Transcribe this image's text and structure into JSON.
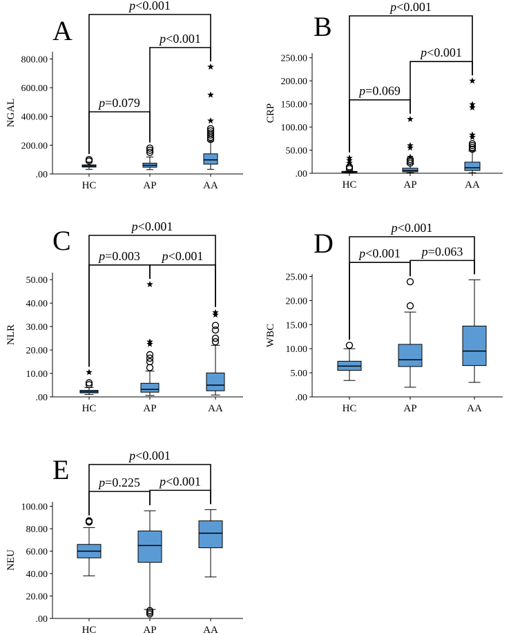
{
  "colors": {
    "box_fill": "#5b9bd5",
    "line": "#000000",
    "background": "#ffffff"
  },
  "chart_data": [
    {
      "panel_label": "A",
      "type": "boxplot",
      "ylabel": "NGAL",
      "ylim": [
        0,
        850
      ],
      "yticks": [
        0,
        200,
        400,
        600,
        800
      ],
      "ytick_labels": [
        ".00",
        "200.00",
        "400.00",
        "600.00",
        "800.00"
      ],
      "categories": [
        "HC",
        "AP",
        "AA"
      ],
      "boxes": [
        {
          "group": "HC",
          "whisker_low": 32,
          "q1": 48,
          "median": 55,
          "q3": 63,
          "whisker_high": 82
        },
        {
          "group": "AP",
          "whisker_low": 30,
          "q1": 47,
          "median": 60,
          "q3": 75,
          "whisker_high": 118
        },
        {
          "group": "AA",
          "whisker_low": 32,
          "q1": 68,
          "median": 98,
          "q3": 140,
          "whisker_high": 228
        }
      ],
      "outliers": [
        {
          "group": "HC",
          "value": 100,
          "marker": "circle"
        },
        {
          "group": "HC",
          "value": 90,
          "marker": "circle"
        },
        {
          "group": "AP",
          "value": 180,
          "marker": "circle"
        },
        {
          "group": "AP",
          "value": 165,
          "marker": "circle"
        },
        {
          "group": "AP",
          "value": 150,
          "marker": "circle"
        },
        {
          "group": "AA",
          "value": 240,
          "marker": "circle"
        },
        {
          "group": "AA",
          "value": 255,
          "marker": "circle"
        },
        {
          "group": "AA",
          "value": 270,
          "marker": "circle"
        },
        {
          "group": "AA",
          "value": 285,
          "marker": "circle"
        },
        {
          "group": "AA",
          "value": 300,
          "marker": "circle"
        },
        {
          "group": "AA",
          "value": 315,
          "marker": "circle"
        },
        {
          "group": "AA",
          "value": 370,
          "marker": "star"
        },
        {
          "group": "AA",
          "value": 550,
          "marker": "star"
        },
        {
          "group": "AA",
          "value": 745,
          "marker": "star"
        }
      ],
      "comparisons": [
        {
          "from": "HC",
          "to": "AP",
          "label": "=0.079"
        },
        {
          "from": "AP",
          "to": "AA",
          "label": "<0.001"
        },
        {
          "from": "HC",
          "to": "AA",
          "label": "<0.001"
        }
      ]
    },
    {
      "panel_label": "B",
      "type": "boxplot",
      "ylabel": "CRP",
      "ylim": [
        0,
        260
      ],
      "yticks": [
        0,
        50,
        100,
        150,
        200,
        250
      ],
      "ytick_labels": [
        ".00",
        "50.00",
        "100.00",
        "150.00",
        "200.00",
        "250.00"
      ],
      "categories": [
        "HC",
        "AP",
        "AA"
      ],
      "boxes": [
        {
          "group": "HC",
          "whisker_low": 1,
          "q1": 2,
          "median": 3,
          "q3": 4,
          "whisker_high": 6
        },
        {
          "group": "AP",
          "whisker_low": 1,
          "q1": 3,
          "median": 6,
          "q3": 11,
          "whisker_high": 20
        },
        {
          "group": "AA",
          "whisker_low": 1,
          "q1": 6,
          "median": 12,
          "q3": 24,
          "whisker_high": 48
        }
      ],
      "outliers": [
        {
          "group": "HC",
          "value": 10,
          "marker": "circle"
        },
        {
          "group": "HC",
          "value": 14,
          "marker": "circle"
        },
        {
          "group": "HC",
          "value": 22,
          "marker": "star"
        },
        {
          "group": "HC",
          "value": 28,
          "marker": "star"
        },
        {
          "group": "HC",
          "value": 33,
          "marker": "star"
        },
        {
          "group": "AP",
          "value": 22,
          "marker": "circle"
        },
        {
          "group": "AP",
          "value": 26,
          "marker": "circle"
        },
        {
          "group": "AP",
          "value": 30,
          "marker": "circle"
        },
        {
          "group": "AP",
          "value": 35,
          "marker": "star"
        },
        {
          "group": "AP",
          "value": 55,
          "marker": "star"
        },
        {
          "group": "AP",
          "value": 60,
          "marker": "star"
        },
        {
          "group": "AP",
          "value": 117,
          "marker": "star"
        },
        {
          "group": "AA",
          "value": 52,
          "marker": "circle"
        },
        {
          "group": "AA",
          "value": 56,
          "marker": "circle"
        },
        {
          "group": "AA",
          "value": 60,
          "marker": "circle"
        },
        {
          "group": "AA",
          "value": 64,
          "marker": "circle"
        },
        {
          "group": "AA",
          "value": 78,
          "marker": "star"
        },
        {
          "group": "AA",
          "value": 83,
          "marker": "star"
        },
        {
          "group": "AA",
          "value": 142,
          "marker": "star"
        },
        {
          "group": "AA",
          "value": 149,
          "marker": "star"
        },
        {
          "group": "AA",
          "value": 200,
          "marker": "star"
        }
      ],
      "comparisons": [
        {
          "from": "HC",
          "to": "AP",
          "label": "=0.069"
        },
        {
          "from": "AP",
          "to": "AA",
          "label": "<0.001"
        },
        {
          "from": "HC",
          "to": "AA",
          "label": "<0.001"
        }
      ]
    },
    {
      "panel_label": "C",
      "type": "boxplot",
      "ylabel": "NLR",
      "ylim": [
        0,
        53
      ],
      "yticks": [
        0,
        10,
        20,
        30,
        40,
        50
      ],
      "ytick_labels": [
        ".00",
        "10.00",
        "20.00",
        "30.00",
        "40.00",
        "50.00"
      ],
      "categories": [
        "HC",
        "AP",
        "AA"
      ],
      "boxes": [
        {
          "group": "HC",
          "whisker_low": 1.0,
          "q1": 1.7,
          "median": 2.2,
          "q3": 2.8,
          "whisker_high": 4.0
        },
        {
          "group": "AP",
          "whisker_low": 0.6,
          "q1": 2.0,
          "median": 3.2,
          "q3": 5.8,
          "whisker_high": 11.0
        },
        {
          "group": "AA",
          "whisker_low": 0.8,
          "q1": 2.6,
          "median": 5.0,
          "q3": 10.2,
          "whisker_high": 22.0
        }
      ],
      "outliers": [
        {
          "group": "HC",
          "value": 5.2,
          "marker": "circle"
        },
        {
          "group": "HC",
          "value": 6.0,
          "marker": "circle"
        },
        {
          "group": "HC",
          "value": 10.5,
          "marker": "star"
        },
        {
          "group": "AP",
          "value": 12.5,
          "marker": "circle"
        },
        {
          "group": "AP",
          "value": 15.0,
          "marker": "circle"
        },
        {
          "group": "AP",
          "value": 16.5,
          "marker": "circle"
        },
        {
          "group": "AP",
          "value": 18.0,
          "marker": "circle"
        },
        {
          "group": "AP",
          "value": 22.5,
          "marker": "star"
        },
        {
          "group": "AP",
          "value": 23.5,
          "marker": "star"
        },
        {
          "group": "AP",
          "value": 48.0,
          "marker": "star"
        },
        {
          "group": "AA",
          "value": 23.5,
          "marker": "circle"
        },
        {
          "group": "AA",
          "value": 25.0,
          "marker": "circle"
        },
        {
          "group": "AA",
          "value": 28.5,
          "marker": "circle"
        },
        {
          "group": "AA",
          "value": 30.5,
          "marker": "circle"
        },
        {
          "group": "AA",
          "value": 35.0,
          "marker": "star"
        },
        {
          "group": "AA",
          "value": 36.0,
          "marker": "star"
        }
      ],
      "comparisons": [
        {
          "from": "HC",
          "to": "AP",
          "label": "=0.003"
        },
        {
          "from": "AP",
          "to": "AA",
          "label": "<0.001"
        },
        {
          "from": "HC",
          "to": "AA",
          "label": "<0.001"
        }
      ]
    },
    {
      "panel_label": "D",
      "type": "boxplot",
      "ylabel": "WBC",
      "ylim": [
        0,
        25.5
      ],
      "yticks": [
        0,
        5,
        10,
        15,
        20,
        25
      ],
      "ytick_labels": [
        ".00",
        "5.00",
        "10.00",
        "15.00",
        "20.00",
        "25.00"
      ],
      "categories": [
        "HC",
        "AP",
        "AA"
      ],
      "boxes": [
        {
          "group": "HC",
          "whisker_low": 3.4,
          "q1": 5.5,
          "median": 6.4,
          "q3": 7.4,
          "whisker_high": 10.0
        },
        {
          "group": "AP",
          "whisker_low": 2.0,
          "q1": 6.3,
          "median": 7.7,
          "q3": 10.9,
          "whisker_high": 17.6
        },
        {
          "group": "AA",
          "whisker_low": 3.0,
          "q1": 6.5,
          "median": 9.5,
          "q3": 14.7,
          "whisker_high": 24.3
        }
      ],
      "outliers": [
        {
          "group": "HC",
          "value": 10.7,
          "marker": "circle"
        },
        {
          "group": "AP",
          "value": 18.9,
          "marker": "circle"
        },
        {
          "group": "AP",
          "value": 23.9,
          "marker": "circle"
        }
      ],
      "comparisons": [
        {
          "from": "HC",
          "to": "AP",
          "label": "<0.001"
        },
        {
          "from": "AP",
          "to": "AA",
          "label": "=0.063"
        },
        {
          "from": "HC",
          "to": "AA",
          "label": "<0.001"
        }
      ]
    },
    {
      "panel_label": "E",
      "type": "boxplot",
      "ylabel": "NEU",
      "ylim": [
        0,
        104
      ],
      "yticks": [
        0,
        20,
        40,
        60,
        80,
        100
      ],
      "ytick_labels": [
        ".00",
        "20.00",
        "40.00",
        "60.00",
        "80.00",
        "100.00"
      ],
      "categories": [
        "HC",
        "AP",
        "AA"
      ],
      "boxes": [
        {
          "group": "HC",
          "whisker_low": 38,
          "q1": 54,
          "median": 60,
          "q3": 66,
          "whisker_high": 81
        },
        {
          "group": "AP",
          "whisker_low": 8,
          "q1": 50,
          "median": 65,
          "q3": 78,
          "whisker_high": 96
        },
        {
          "group": "AA",
          "whisker_low": 37,
          "q1": 63,
          "median": 76,
          "q3": 87,
          "whisker_high": 97
        }
      ],
      "outliers": [
        {
          "group": "HC",
          "value": 86,
          "marker": "circle"
        },
        {
          "group": "HC",
          "value": 87,
          "marker": "circle"
        },
        {
          "group": "AP",
          "value": 7,
          "marker": "circle"
        },
        {
          "group": "AP",
          "value": 5.5,
          "marker": "circle"
        },
        {
          "group": "AP",
          "value": 4,
          "marker": "circle"
        }
      ],
      "comparisons": [
        {
          "from": "HC",
          "to": "AP",
          "label": "=0.225"
        },
        {
          "from": "AP",
          "to": "AA",
          "label": "<0.001"
        },
        {
          "from": "HC",
          "to": "AA",
          "label": "<0.001"
        }
      ]
    }
  ],
  "p_symbol": "p"
}
